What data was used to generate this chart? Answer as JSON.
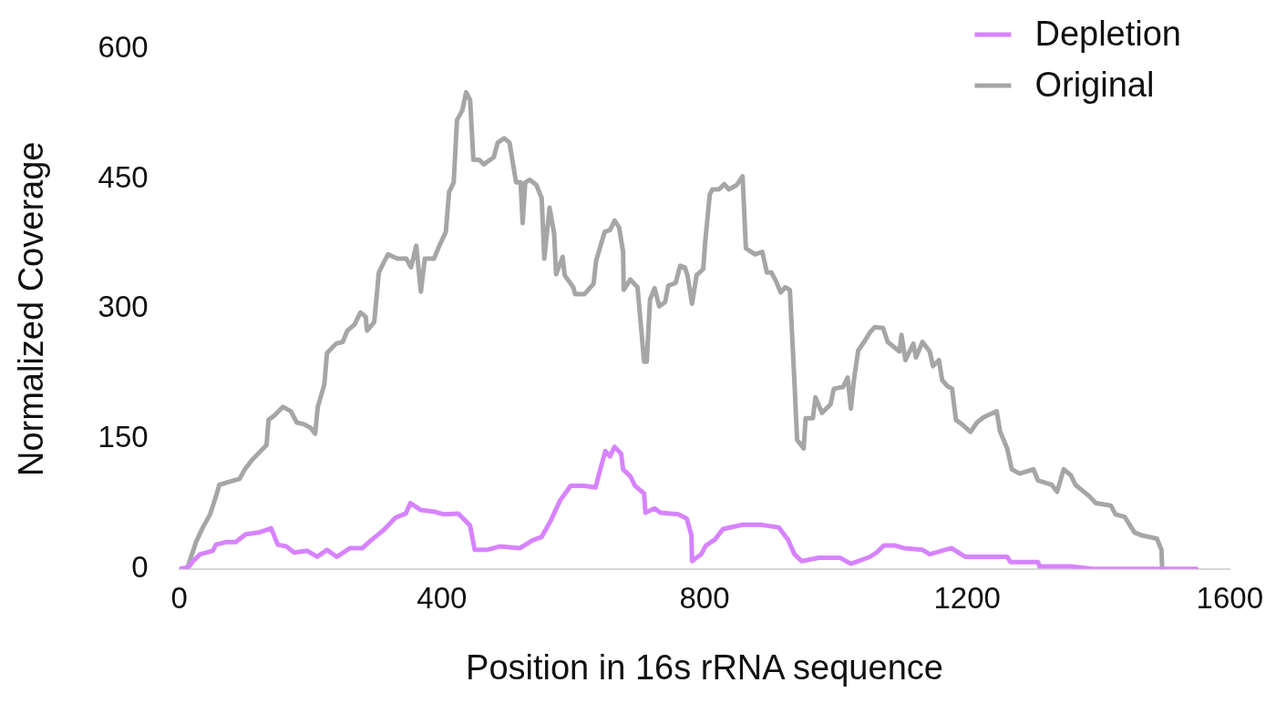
{
  "chart_data": {
    "type": "line",
    "xlabel": "Position in 16s rRNA sequence",
    "ylabel": "Normalized Coverage",
    "xlim": [
      0,
      1600
    ],
    "xticks": [
      0,
      400,
      800,
      1200,
      1600
    ],
    "ylim": [
      0,
      600
    ],
    "yticks": [
      0,
      150,
      300,
      450,
      600
    ],
    "grid": false,
    "legend": "top right",
    "marker": "none",
    "line_style": "solid",
    "series": [
      {
        "name": "Depletion",
        "color": "#d783ff",
        "x": [
          0,
          14,
          21,
          32,
          51,
          56,
          71,
          86,
          101,
          121,
          140,
          150,
          163,
          175,
          195,
          210,
          225,
          240,
          260,
          279,
          292,
          310,
          329,
          345,
          352,
          368,
          389,
          403,
          425,
          443,
          450,
          468,
          488,
          519,
          538,
          552,
          566,
          580,
          596,
          617,
          634,
          642,
          649,
          656,
          663,
          673,
          676,
          687,
          694,
          708,
          710,
          724,
          733,
          760,
          773,
          780,
          781,
          795,
          802,
          816,
          828,
          858,
          885,
          913,
          927,
          937,
          948,
          974,
          1006,
          1023,
          1052,
          1062,
          1073,
          1090,
          1104,
          1132,
          1143,
          1176,
          1197,
          1261,
          1266,
          1308,
          1310,
          1358,
          1391,
          1549
        ],
        "values": [
          0,
          2,
          9,
          17,
          21,
          28,
          31,
          31,
          40,
          42,
          47,
          28,
          26,
          19,
          21,
          14,
          22,
          14,
          24,
          24,
          33,
          44,
          59,
          64,
          76,
          68,
          66,
          63,
          64,
          50,
          22,
          22,
          26,
          24,
          33,
          37,
          56,
          79,
          96,
          96,
          94,
          117,
          136,
          130,
          141,
          133,
          115,
          107,
          96,
          87,
          65,
          70,
          65,
          63,
          58,
          39,
          9,
          17,
          27,
          34,
          46,
          51,
          51,
          48,
          34,
          17,
          9,
          13,
          13,
          6,
          14,
          19,
          27,
          27,
          24,
          22,
          17,
          24,
          14,
          14,
          8,
          8,
          3,
          3,
          0,
          0
        ]
      },
      {
        "name": "Original",
        "color": "#a6a6a6",
        "x": [
          12,
          26,
          36,
          47,
          56,
          61,
          78,
          92,
          100,
          110,
          124,
          133,
          136,
          145,
          158,
          170,
          179,
          190,
          200,
          207,
          211,
          221,
          225,
          239,
          249,
          256,
          267,
          276,
          284,
          286,
          297,
          304,
          311,
          318,
          332,
          346,
          353,
          361,
          368,
          374,
          388,
          395,
          406,
          411,
          418,
          423,
          431,
          437,
          443,
          448,
          457,
          464,
          479,
          485,
          495,
          503,
          513,
          520,
          523,
          527,
          534,
          544,
          552,
          556,
          564,
          571,
          574,
          584,
          587,
          600,
          603,
          617,
          631,
          635,
          648,
          656,
          663,
          670,
          676,
          677,
          687,
          698,
          708,
          712,
          717,
          724,
          731,
          740,
          745,
          756,
          763,
          770,
          774,
          781,
          788,
          798,
          801,
          808,
          812,
          822,
          830,
          837,
          849,
          858,
          863,
          877,
          888,
          895,
          902,
          909,
          916,
          923,
          930,
          937,
          941,
          951,
          954,
          965,
          969,
          979,
          992,
          997,
          1011,
          1018,
          1023,
          1027,
          1034,
          1044,
          1052,
          1059,
          1072,
          1079,
          1097,
          1100,
          1106,
          1118,
          1122,
          1132,
          1143,
          1148,
          1157,
          1162,
          1170,
          1177,
          1183,
          1192,
          1205,
          1215,
          1225,
          1245,
          1250,
          1261,
          1268,
          1280,
          1301,
          1308,
          1329,
          1337,
          1347,
          1358,
          1365,
          1386,
          1396,
          1419,
          1426,
          1440,
          1455,
          1465,
          1489,
          1496,
          1497
        ],
        "values": [
          0,
          32,
          48,
          63,
          84,
          97,
          101,
          104,
          115,
          125,
          136,
          143,
          172,
          177,
          187,
          182,
          169,
          167,
          163,
          156,
          187,
          213,
          249,
          260,
          262,
          275,
          282,
          296,
          291,
          275,
          285,
          342,
          353,
          363,
          358,
          358,
          348,
          373,
          320,
          358,
          358,
          371,
          389,
          435,
          446,
          518,
          529,
          550,
          541,
          472,
          472,
          467,
          475,
          492,
          497,
          492,
          446,
          446,
          399,
          446,
          449,
          443,
          428,
          358,
          417,
          387,
          340,
          360,
          339,
          325,
          317,
          317,
          329,
          356,
          389,
          391,
          402,
          394,
          366,
          322,
          334,
          325,
          239,
          239,
          311,
          324,
          303,
          308,
          327,
          330,
          350,
          348,
          339,
          306,
          339,
          346,
          377,
          432,
          438,
          438,
          444,
          438,
          443,
          453,
          370,
          363,
          366,
          342,
          342,
          332,
          319,
          325,
          322,
          215,
          149,
          139,
          174,
          174,
          198,
          180,
          190,
          208,
          210,
          221,
          185,
          215,
          252,
          263,
          273,
          279,
          278,
          262,
          251,
          270,
          241,
          260,
          244,
          262,
          251,
          234,
          241,
          218,
          211,
          208,
          172,
          167,
          158,
          169,
          175,
          182,
          159,
          139,
          115,
          110,
          115,
          102,
          97,
          89,
          115,
          108,
          97,
          84,
          76,
          73,
          63,
          60,
          42,
          39,
          35,
          22,
          0
        ]
      }
    ]
  }
}
